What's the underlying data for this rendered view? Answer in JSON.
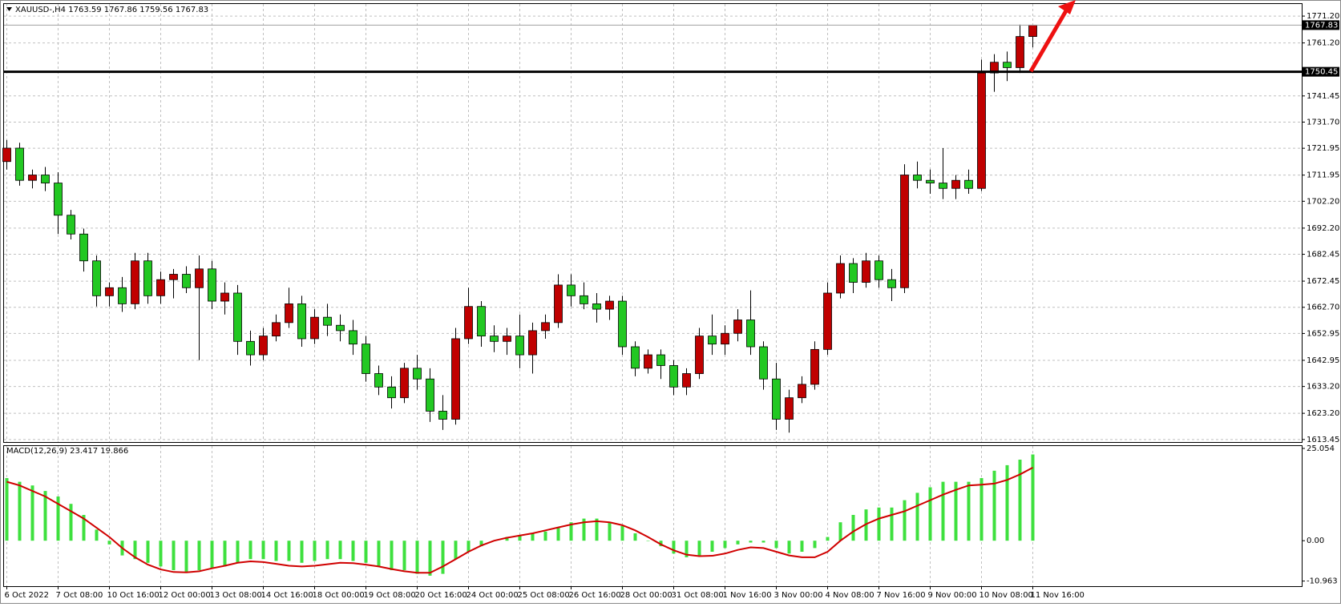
{
  "chart_data": [
    {
      "type": "candlestick",
      "title": "XAUUSD-,H4  1763.59 1767.86 1759.56 1767.83",
      "categories": [
        "6 Oct 2022",
        null,
        null,
        null,
        "7 Oct 08:00",
        null,
        null,
        null,
        "10 Oct 16:00",
        null,
        null,
        null,
        "12 Oct 00:00",
        null,
        null,
        null,
        "13 Oct 08:00",
        null,
        null,
        null,
        "14 Oct 16:00",
        null,
        null,
        null,
        "18 Oct 00:00",
        null,
        null,
        null,
        "19 Oct 08:00",
        null,
        null,
        null,
        "20 Oct 16:00",
        null,
        null,
        null,
        "24 Oct 00:00",
        null,
        null,
        null,
        "25 Oct 08:00",
        null,
        null,
        null,
        "26 Oct 16:00",
        null,
        null,
        null,
        "28 Oct 00:00",
        null,
        null,
        null,
        "31 Oct 08:00",
        null,
        null,
        null,
        "1 Nov 16:00",
        null,
        null,
        null,
        "3 Nov 00:00",
        null,
        null,
        null,
        "4 Nov 08:00",
        null,
        null,
        null,
        "7 Nov 16:00",
        null,
        null,
        null,
        "9 Nov 00:00",
        null,
        null,
        null,
        "10 Nov 08:00",
        null,
        null,
        null,
        "11 Nov 16:00"
      ],
      "open": [
        1717,
        1722,
        1710,
        1712,
        1709,
        1697,
        1690,
        1680,
        1667,
        1670,
        1664,
        1680,
        1667,
        1673,
        1675,
        1670,
        1677,
        1665,
        1668,
        1650,
        1645,
        1652,
        1657,
        1664,
        1651,
        1659,
        1656,
        1654,
        1649,
        1638,
        1633,
        1629,
        1640,
        1636,
        1624,
        1621,
        1651,
        1663,
        1652,
        1650,
        1652,
        1645,
        1654,
        1657,
        1671,
        1667,
        1664,
        1662,
        1665,
        1648,
        1640,
        1645,
        1641,
        1633,
        1638,
        1652,
        1649,
        1653,
        1658,
        1648,
        1636,
        1621,
        1629,
        1634,
        1647,
        1668,
        1679,
        1672,
        1680,
        1673,
        1670,
        1712,
        1710,
        1709,
        1707,
        1710,
        1707,
        1750,
        1754,
        1752,
        1763.59
      ],
      "high": [
        1725,
        1724,
        1714,
        1715,
        1713,
        1699,
        1692,
        1682,
        1672,
        1674,
        1683,
        1683,
        1676,
        1677,
        1678,
        1682,
        1680,
        1672,
        1671,
        1654,
        1655,
        1660,
        1670,
        1667,
        1662,
        1664,
        1660,
        1658,
        1652,
        1641,
        1637,
        1642,
        1645,
        1640,
        1630,
        1655,
        1670,
        1665,
        1656,
        1655,
        1660,
        1657,
        1660,
        1675,
        1675,
        1672,
        1668,
        1667,
        1667,
        1650,
        1647,
        1647,
        1643,
        1640,
        1655,
        1660,
        1656,
        1662,
        1669,
        1650,
        1642,
        1632,
        1637,
        1650,
        1672,
        1682,
        1681,
        1683,
        1682,
        1677,
        1716,
        1717,
        1714,
        1722,
        1712,
        1714,
        1755,
        1757,
        1758,
        1768,
        1767.86
      ],
      "low": [
        1714,
        1708,
        1707,
        1706,
        1690,
        1688,
        1676,
        1663,
        1663,
        1661,
        1662,
        1664,
        1664,
        1666,
        1668,
        1643,
        1662,
        1660,
        1645,
        1641,
        1643,
        1650,
        1655,
        1648,
        1649,
        1652,
        1650,
        1645,
        1635,
        1630,
        1625,
        1627,
        1632,
        1620,
        1617,
        1619,
        1649,
        1648,
        1646,
        1645,
        1640,
        1638,
        1651,
        1655,
        1663,
        1662,
        1657,
        1658,
        1645,
        1637,
        1638,
        1636,
        1630,
        1630,
        1636,
        1645,
        1645,
        1650,
        1645,
        1632,
        1617,
        1616,
        1627,
        1632,
        1645,
        1666,
        1668,
        1670,
        1670,
        1665,
        1668,
        1707,
        1705,
        1703,
        1703,
        1705,
        1706,
        1743,
        1747,
        1750,
        1759.56
      ],
      "close": [
        1722,
        1710,
        1712,
        1709,
        1697,
        1690,
        1680,
        1667,
        1670,
        1664,
        1680,
        1667,
        1673,
        1675,
        1670,
        1677,
        1665,
        1668,
        1650,
        1645,
        1652,
        1657,
        1664,
        1651,
        1659,
        1656,
        1654,
        1649,
        1638,
        1633,
        1629,
        1640,
        1636,
        1624,
        1621,
        1651,
        1663,
        1652,
        1650,
        1652,
        1645,
        1654,
        1657,
        1671,
        1667,
        1664,
        1662,
        1665,
        1648,
        1640,
        1645,
        1641,
        1633,
        1638,
        1652,
        1649,
        1653,
        1658,
        1648,
        1636,
        1621,
        1629,
        1634,
        1647,
        1668,
        1679,
        1672,
        1680,
        1673,
        1670,
        1712,
        1710,
        1709,
        1707,
        1710,
        1707,
        1750,
        1754,
        1752,
        1763.59,
        1767.83
      ],
      "up_color": "#c00000",
      "down_color": "#22c822",
      "wick_color": "#000000",
      "ylim": [
        1612.5,
        1775.7
      ],
      "yticks": [
        {
          "value": 1771.2,
          "label": "1771.20"
        },
        {
          "value": 1761.2,
          "label": "1761.20"
        },
        {
          "value": 1741.45,
          "label": "1741.45"
        },
        {
          "value": 1731.7,
          "label": "1731.70"
        },
        {
          "value": 1721.95,
          "label": "1721.95"
        },
        {
          "value": 1711.95,
          "label": "1711.95"
        },
        {
          "value": 1702.2,
          "label": "1702.20"
        },
        {
          "value": 1692.2,
          "label": "1692.20"
        },
        {
          "value": 1682.45,
          "label": "1682.45"
        },
        {
          "value": 1672.45,
          "label": "1672.45"
        },
        {
          "value": 1662.7,
          "label": "1662.70"
        },
        {
          "value": 1652.95,
          "label": "1652.95"
        },
        {
          "value": 1642.95,
          "label": "1642.95"
        },
        {
          "value": 1633.2,
          "label": "1633.20"
        },
        {
          "value": 1623.2,
          "label": "1623.20"
        },
        {
          "value": 1613.45,
          "label": "1613.45"
        }
      ],
      "grid": true,
      "hline": {
        "value": 1750.45,
        "label": "1750.45"
      },
      "price_line": {
        "value": 1767.83,
        "label": "1767.83"
      }
    },
    {
      "type": "macd",
      "title": "MACD(12,26,9) 23.417 19.866",
      "histogram": [
        17,
        16,
        15,
        13.5,
        12,
        10,
        7,
        3,
        -1,
        -4,
        -5,
        -6,
        -7,
        -8,
        -8.5,
        -8,
        -7.5,
        -7,
        -6,
        -5,
        -5,
        -5.5,
        -5.5,
        -6,
        -5.5,
        -5,
        -5,
        -5.5,
        -6,
        -7,
        -8,
        -8,
        -9,
        -9.5,
        -9,
        -5,
        -3,
        -1.5,
        0,
        1,
        1.5,
        2,
        2.5,
        3.5,
        5,
        6,
        6,
        5,
        4,
        2,
        0,
        -1.5,
        -3.5,
        -4.5,
        -4,
        -3,
        -2,
        -1,
        -0.5,
        -0.5,
        -2,
        -3.5,
        -3,
        -2,
        1,
        5,
        7,
        8.5,
        9,
        9,
        11,
        13,
        14.5,
        16,
        16,
        16,
        17,
        19,
        20.5,
        22,
        23.417
      ],
      "signal": [
        16,
        15,
        13.5,
        12,
        10,
        8,
        6,
        3.5,
        1,
        -2,
        -4.5,
        -6.5,
        -7.8,
        -8.5,
        -8.6,
        -8.3,
        -7.5,
        -6.8,
        -6,
        -5.6,
        -5.8,
        -6.3,
        -6.8,
        -7,
        -6.8,
        -6.4,
        -6,
        -6.1,
        -6.5,
        -7,
        -7.7,
        -8.3,
        -8.7,
        -8.7,
        -7,
        -5,
        -3,
        -1.3,
        0,
        0.8,
        1.4,
        2,
        2.8,
        3.6,
        4.4,
        5,
        5.3,
        5,
        4.2,
        2.8,
        1,
        -1,
        -2.6,
        -3.8,
        -4.2,
        -4.1,
        -3.5,
        -2.5,
        -1.8,
        -2,
        -3,
        -4,
        -4.5,
        -4.5,
        -3,
        0,
        2.5,
        4.5,
        6,
        7,
        8,
        9.5,
        11,
        12.5,
        13.8,
        15,
        15.2,
        15.5,
        16.5,
        18,
        19.866
      ],
      "histogram_color": "#3ee03e",
      "signal_color": "#d00000",
      "ylim": [
        -12.35,
        25.7
      ],
      "yticks": [
        25.054,
        {
          "value": 0,
          "label": "0.00"
        },
        -10.963
      ]
    }
  ]
}
